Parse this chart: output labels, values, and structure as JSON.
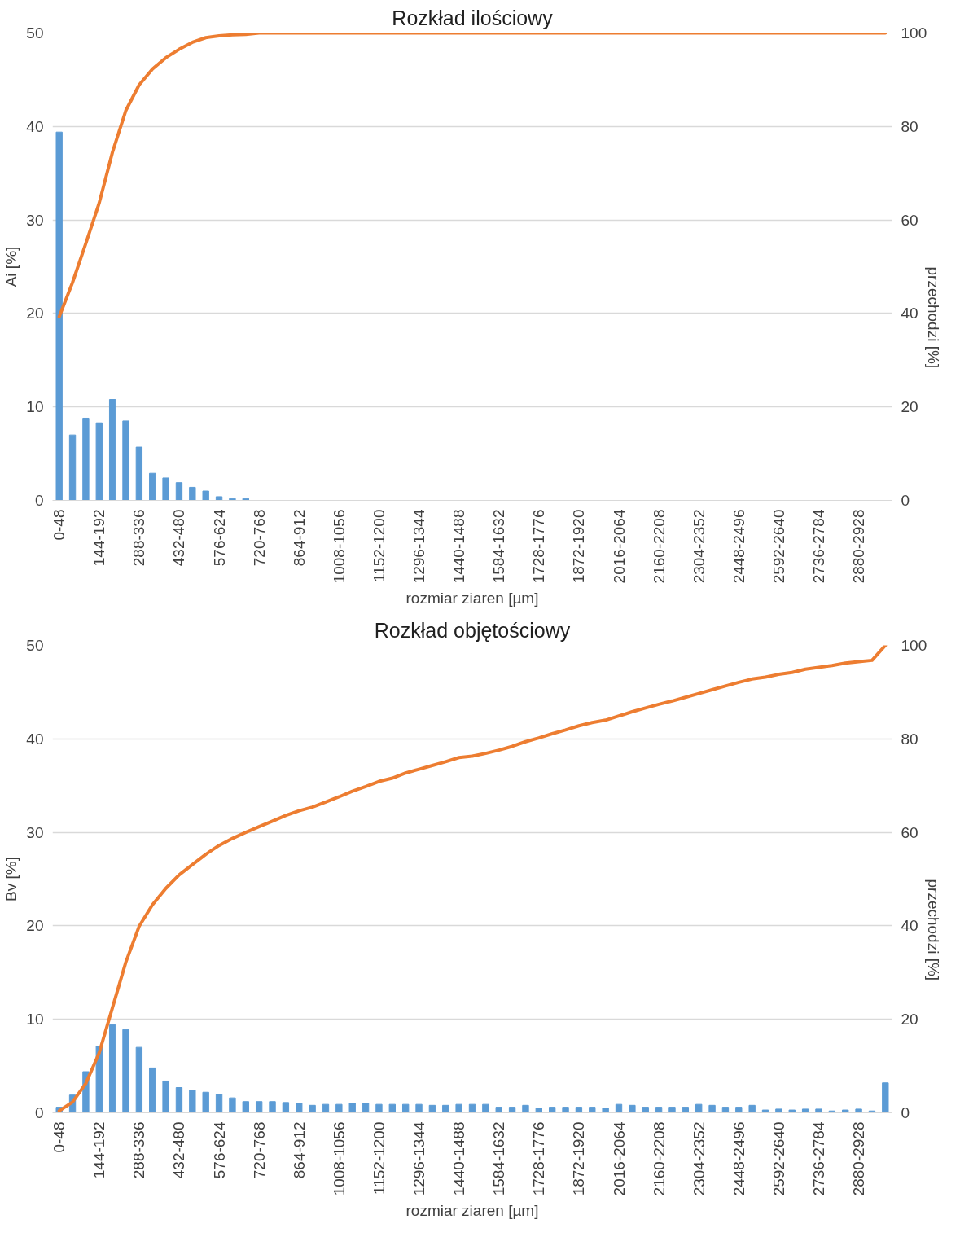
{
  "chart_data": [
    {
      "type": "bar",
      "title": "Rozkład ilościowy",
      "xlabel": "rozmiar ziaren [µm]",
      "ylabel": "Ai [%]",
      "y2label": "przechodzi [%]",
      "categories": [
        "0-48",
        null,
        null,
        "144-192",
        null,
        null,
        "288-336",
        null,
        null,
        "432-480",
        null,
        null,
        "576-624",
        null,
        null,
        "720-768",
        null,
        null,
        "864-912",
        null,
        null,
        "1008-1056",
        null,
        null,
        "1152-1200",
        null,
        null,
        "1296-1344",
        null,
        null,
        "1440-1488",
        null,
        null,
        "1584-1632",
        null,
        null,
        "1728-1776",
        null,
        null,
        "1872-1920",
        null,
        null,
        "2016-2064",
        null,
        null,
        "2160-2208",
        null,
        null,
        "2304-2352",
        null,
        null,
        "2448-2496",
        null,
        null,
        "2592-2640",
        null,
        null,
        "2736-2784",
        null,
        null,
        "2880-2928",
        null,
        null
      ],
      "series": [
        {
          "color": "#5b9bd5",
          "values": [
            39.4,
            7.0,
            8.8,
            8.3,
            10.8,
            8.5,
            5.7,
            2.9,
            2.4,
            1.9,
            1.4,
            1.0,
            0.4,
            0.2,
            0.2,
            0,
            0,
            0,
            0,
            0,
            0,
            0,
            0,
            0,
            0,
            0,
            0,
            0,
            0,
            0,
            0,
            0,
            0,
            0,
            0,
            0,
            0,
            0,
            0,
            0,
            0,
            0,
            0,
            0,
            0,
            0,
            0,
            0,
            0,
            0,
            0,
            0,
            0,
            0,
            0,
            0,
            0,
            0,
            0,
            0,
            0,
            0,
            0
          ]
        },
        {
          "type": "line",
          "axis": "y2",
          "color": "#ed7d31",
          "values": [
            39.3,
            46.6,
            55,
            63.6,
            74.5,
            83.4,
            88.9,
            92.3,
            94.7,
            96.5,
            98,
            99,
            99.4,
            99.6,
            99.7,
            100,
            100,
            100,
            100,
            100,
            100,
            100,
            100,
            100,
            100,
            100,
            100,
            100,
            100,
            100,
            100,
            100,
            100,
            100,
            100,
            100,
            100,
            100,
            100,
            100,
            100,
            100,
            100,
            100,
            100,
            100,
            100,
            100,
            100,
            100,
            100,
            100,
            100,
            100,
            100,
            100,
            100,
            100,
            100,
            100,
            100,
            100,
            100
          ]
        }
      ],
      "ylim": [
        0,
        50
      ],
      "yticks": [
        0,
        10,
        20,
        30,
        40,
        50
      ],
      "y2lim": [
        0,
        100
      ],
      "y2ticks": [
        0,
        20,
        40,
        60,
        80,
        100
      ],
      "grid": "y"
    },
    {
      "type": "bar",
      "title": "Rozkład objętościowy",
      "xlabel": "rozmiar ziaren [µm]",
      "ylabel": "Bv [%]",
      "y2label": "przechodzi [%]",
      "categories": [
        "0-48",
        null,
        null,
        "144-192",
        null,
        null,
        "288-336",
        null,
        null,
        "432-480",
        null,
        null,
        "576-624",
        null,
        null,
        "720-768",
        null,
        null,
        "864-912",
        null,
        null,
        "1008-1056",
        null,
        null,
        "1152-1200",
        null,
        null,
        "1296-1344",
        null,
        null,
        "1440-1488",
        null,
        null,
        "1584-1632",
        null,
        null,
        "1728-1776",
        null,
        null,
        "1872-1920",
        null,
        null,
        "2016-2064",
        null,
        null,
        "2160-2208",
        null,
        null,
        "2304-2352",
        null,
        null,
        "2448-2496",
        null,
        null,
        "2592-2640",
        null,
        null,
        "2736-2784",
        null,
        null,
        "2880-2928",
        null,
        null
      ],
      "series": [
        {
          "color": "#5b9bd5",
          "values": [
            0.6,
            1.9,
            4.4,
            7.1,
            9.4,
            8.9,
            7.0,
            4.8,
            3.4,
            2.7,
            2.4,
            2.2,
            2.0,
            1.6,
            1.2,
            1.2,
            1.2,
            1.1,
            1.0,
            0.8,
            0.9,
            0.9,
            1.0,
            1.0,
            0.9,
            0.9,
            0.9,
            0.9,
            0.8,
            0.8,
            0.9,
            0.9,
            0.9,
            0.6,
            0.6,
            0.8,
            0.5,
            0.6,
            0.6,
            0.6,
            0.6,
            0.5,
            0.9,
            0.8,
            0.6,
            0.6,
            0.6,
            0.6,
            0.9,
            0.8,
            0.6,
            0.6,
            0.8,
            0.3,
            0.4,
            0.3,
            0.4,
            0.4,
            0.2,
            0.3,
            0.4,
            0.2,
            3.2
          ]
        },
        {
          "type": "line",
          "axis": "y2",
          "color": "#ed7d31",
          "values": [
            0.4,
            2.3,
            6.3,
            12.8,
            22.5,
            32.2,
            39.9,
            44.5,
            48.0,
            50.9,
            53.1,
            55.3,
            57.2,
            58.7,
            60.0,
            61.2,
            62.4,
            63.6,
            64.6,
            65.4,
            66.5,
            67.6,
            68.8,
            69.8,
            70.9,
            71.6,
            72.7,
            73.5,
            74.3,
            75.1,
            76.0,
            76.3,
            76.9,
            77.6,
            78.4,
            79.4,
            80.2,
            81.1,
            81.9,
            82.8,
            83.5,
            84.0,
            84.9,
            85.8,
            86.6,
            87.4,
            88.1,
            88.9,
            89.7,
            90.5,
            91.3,
            92.1,
            92.8,
            93.2,
            93.8,
            94.2,
            94.9,
            95.3,
            95.7,
            96.2,
            96.5,
            96.8,
            100
          ]
        }
      ],
      "ylim": [
        0,
        50
      ],
      "yticks": [
        0,
        10,
        20,
        30,
        40,
        50
      ],
      "y2lim": [
        0,
        100
      ],
      "y2ticks": [
        0,
        20,
        40,
        60,
        80,
        100
      ],
      "grid": "y"
    }
  ]
}
